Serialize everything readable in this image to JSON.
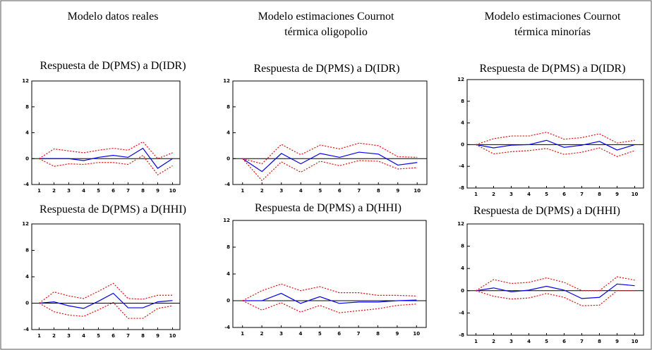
{
  "columns": [
    "Modelo datos reales",
    [
      "Modelo estimaciones  Cournot",
      "térmica oligopolio"
    ],
    [
      "Modelo estimaciones  Cournot",
      "térmica minorías"
    ]
  ],
  "chart_data": [
    {
      "type": "line",
      "title": "Respuesta de D(PMS) a D(IDR)",
      "categories": [
        "1",
        "2",
        "3",
        "4",
        "5",
        "6",
        "7",
        "8",
        "9",
        "10"
      ],
      "ylim": [
        -4,
        12
      ],
      "yticks": [
        -4,
        0,
        4,
        8,
        12
      ],
      "series": [
        {
          "color": "#0000ff",
          "style": "solid",
          "values": [
            0,
            0,
            0,
            -0.3,
            0.2,
            0.5,
            0.2,
            1.6,
            -1.5,
            0
          ]
        },
        {
          "color": "#ff0000",
          "style": "dotted",
          "values": [
            0,
            1.5,
            1.2,
            0.9,
            1.3,
            1.6,
            1.3,
            2.6,
            0,
            0.9
          ]
        },
        {
          "color": "#ff0000",
          "style": "dotted",
          "values": [
            0,
            -1.2,
            -0.8,
            -0.9,
            -0.6,
            -0.6,
            -0.9,
            0.5,
            -2.5,
            -1.1
          ]
        }
      ]
    },
    {
      "type": "line",
      "title": "Respuesta de D(PMS) a D(IDR)",
      "categories": [
        "1",
        "2",
        "3",
        "4",
        "5",
        "6",
        "7",
        "8",
        "9",
        "10"
      ],
      "ylim": [
        -4,
        12
      ],
      "yticks": [
        -4,
        0,
        4,
        8,
        12
      ],
      "series": [
        {
          "color": "#0000ff",
          "style": "solid",
          "values": [
            0,
            -2,
            0.8,
            -0.8,
            0.8,
            0.2,
            1,
            0.7,
            -1,
            -0.6
          ]
        },
        {
          "color": "#ff0000",
          "style": "dotted",
          "values": [
            0,
            -0.8,
            2.2,
            0.6,
            2.1,
            1.5,
            2.4,
            2,
            0.3,
            0.2
          ]
        },
        {
          "color": "#ff0000",
          "style": "dotted",
          "values": [
            0,
            -3.4,
            -0.5,
            -2.1,
            -0.4,
            -1.1,
            -0.3,
            -0.4,
            -1.6,
            -1.4
          ]
        }
      ]
    },
    {
      "type": "line",
      "title": "Respuesta de D(PMS) a D(IDR)",
      "categories": [
        "1",
        "2",
        "3",
        "4",
        "5",
        "6",
        "7",
        "8",
        "9",
        "10"
      ],
      "ylim": [
        -8,
        12
      ],
      "yticks": [
        -8,
        -4,
        0,
        4,
        8,
        12
      ],
      "series": [
        {
          "color": "#0000ff",
          "style": "solid",
          "values": [
            0,
            -0.6,
            -0.1,
            0,
            0.8,
            -0.5,
            -0.1,
            0.6,
            -1,
            0
          ]
        },
        {
          "color": "#ff0000",
          "style": "dotted",
          "values": [
            0,
            1.1,
            1.6,
            1.6,
            2.3,
            1,
            1.3,
            2,
            0.3,
            0.8
          ]
        },
        {
          "color": "#ff0000",
          "style": "dotted",
          "values": [
            0,
            -1.7,
            -1.3,
            -1.1,
            -0.7,
            -1.8,
            -1.4,
            -0.6,
            -2.2,
            -1.1
          ]
        }
      ]
    },
    {
      "type": "line",
      "title": "Respuesta de D(PMS) a D(HHI)",
      "categories": [
        "1",
        "2",
        "3",
        "4",
        "5",
        "6",
        "7",
        "8",
        "9",
        "10"
      ],
      "ylim": [
        -4,
        12
      ],
      "yticks": [
        -4,
        0,
        4,
        8,
        12
      ],
      "series": [
        {
          "color": "#0000ff",
          "style": "solid",
          "values": [
            0,
            0.2,
            -0.4,
            -0.8,
            0.3,
            1.5,
            -0.7,
            -0.7,
            0.2,
            0.4
          ]
        },
        {
          "color": "#ff0000",
          "style": "dotted",
          "values": [
            0,
            1.7,
            1.1,
            0.7,
            1.8,
            3,
            0.7,
            0.6,
            1.2,
            1.2
          ]
        },
        {
          "color": "#ff0000",
          "style": "dotted",
          "values": [
            0,
            -1.3,
            -1.8,
            -2,
            -1,
            0.1,
            -2.3,
            -2.3,
            -0.8,
            -0.4
          ]
        }
      ]
    },
    {
      "type": "line",
      "title": "Respuesta de D(PMS) a D(HHI)",
      "categories": [
        "1",
        "2",
        "3",
        "4",
        "5",
        "6",
        "7",
        "8",
        "9",
        "10"
      ],
      "ylim": [
        -4,
        12
      ],
      "yticks": [
        -4,
        0,
        4,
        8,
        12
      ],
      "series": [
        {
          "color": "#0000ff",
          "style": "solid",
          "values": [
            0,
            0,
            1.1,
            -0.4,
            0.6,
            -0.4,
            -0.2,
            -0.2,
            0,
            0.1
          ]
        },
        {
          "color": "#ff0000",
          "style": "dotted",
          "values": [
            0,
            1.5,
            2.5,
            1.5,
            2.1,
            1.2,
            1.2,
            0.8,
            0.8,
            0.7
          ]
        },
        {
          "color": "#ff0000",
          "style": "dotted",
          "values": [
            0,
            -1.4,
            -0.3,
            -1.7,
            -0.7,
            -1.8,
            -1.5,
            -1.2,
            -0.7,
            -0.5
          ]
        }
      ]
    },
    {
      "type": "line",
      "title": "Respuesta de D(PMS) a D(HHI)",
      "categories": [
        "1",
        "2",
        "3",
        "4",
        "5",
        "6",
        "7",
        "8",
        "9",
        "10"
      ],
      "ylim": [
        -8,
        12
      ],
      "yticks": [
        -8,
        -4,
        0,
        4,
        8,
        12
      ],
      "series": [
        {
          "color": "#0000ff",
          "style": "solid",
          "values": [
            0,
            0.5,
            -0.2,
            0.1,
            0.8,
            0.1,
            -1.4,
            -1.2,
            1.2,
            0.9
          ]
        },
        {
          "color": "#ff0000",
          "style": "dotted",
          "values": [
            0,
            2,
            1.3,
            1.5,
            2.3,
            1.5,
            0,
            0,
            2.5,
            1.9
          ]
        },
        {
          "color": "#ff0000",
          "style": "dotted",
          "values": [
            0,
            -1,
            -1.5,
            -1.3,
            -0.5,
            -1.2,
            -2.7,
            -2.6,
            0,
            0
          ]
        }
      ]
    }
  ]
}
